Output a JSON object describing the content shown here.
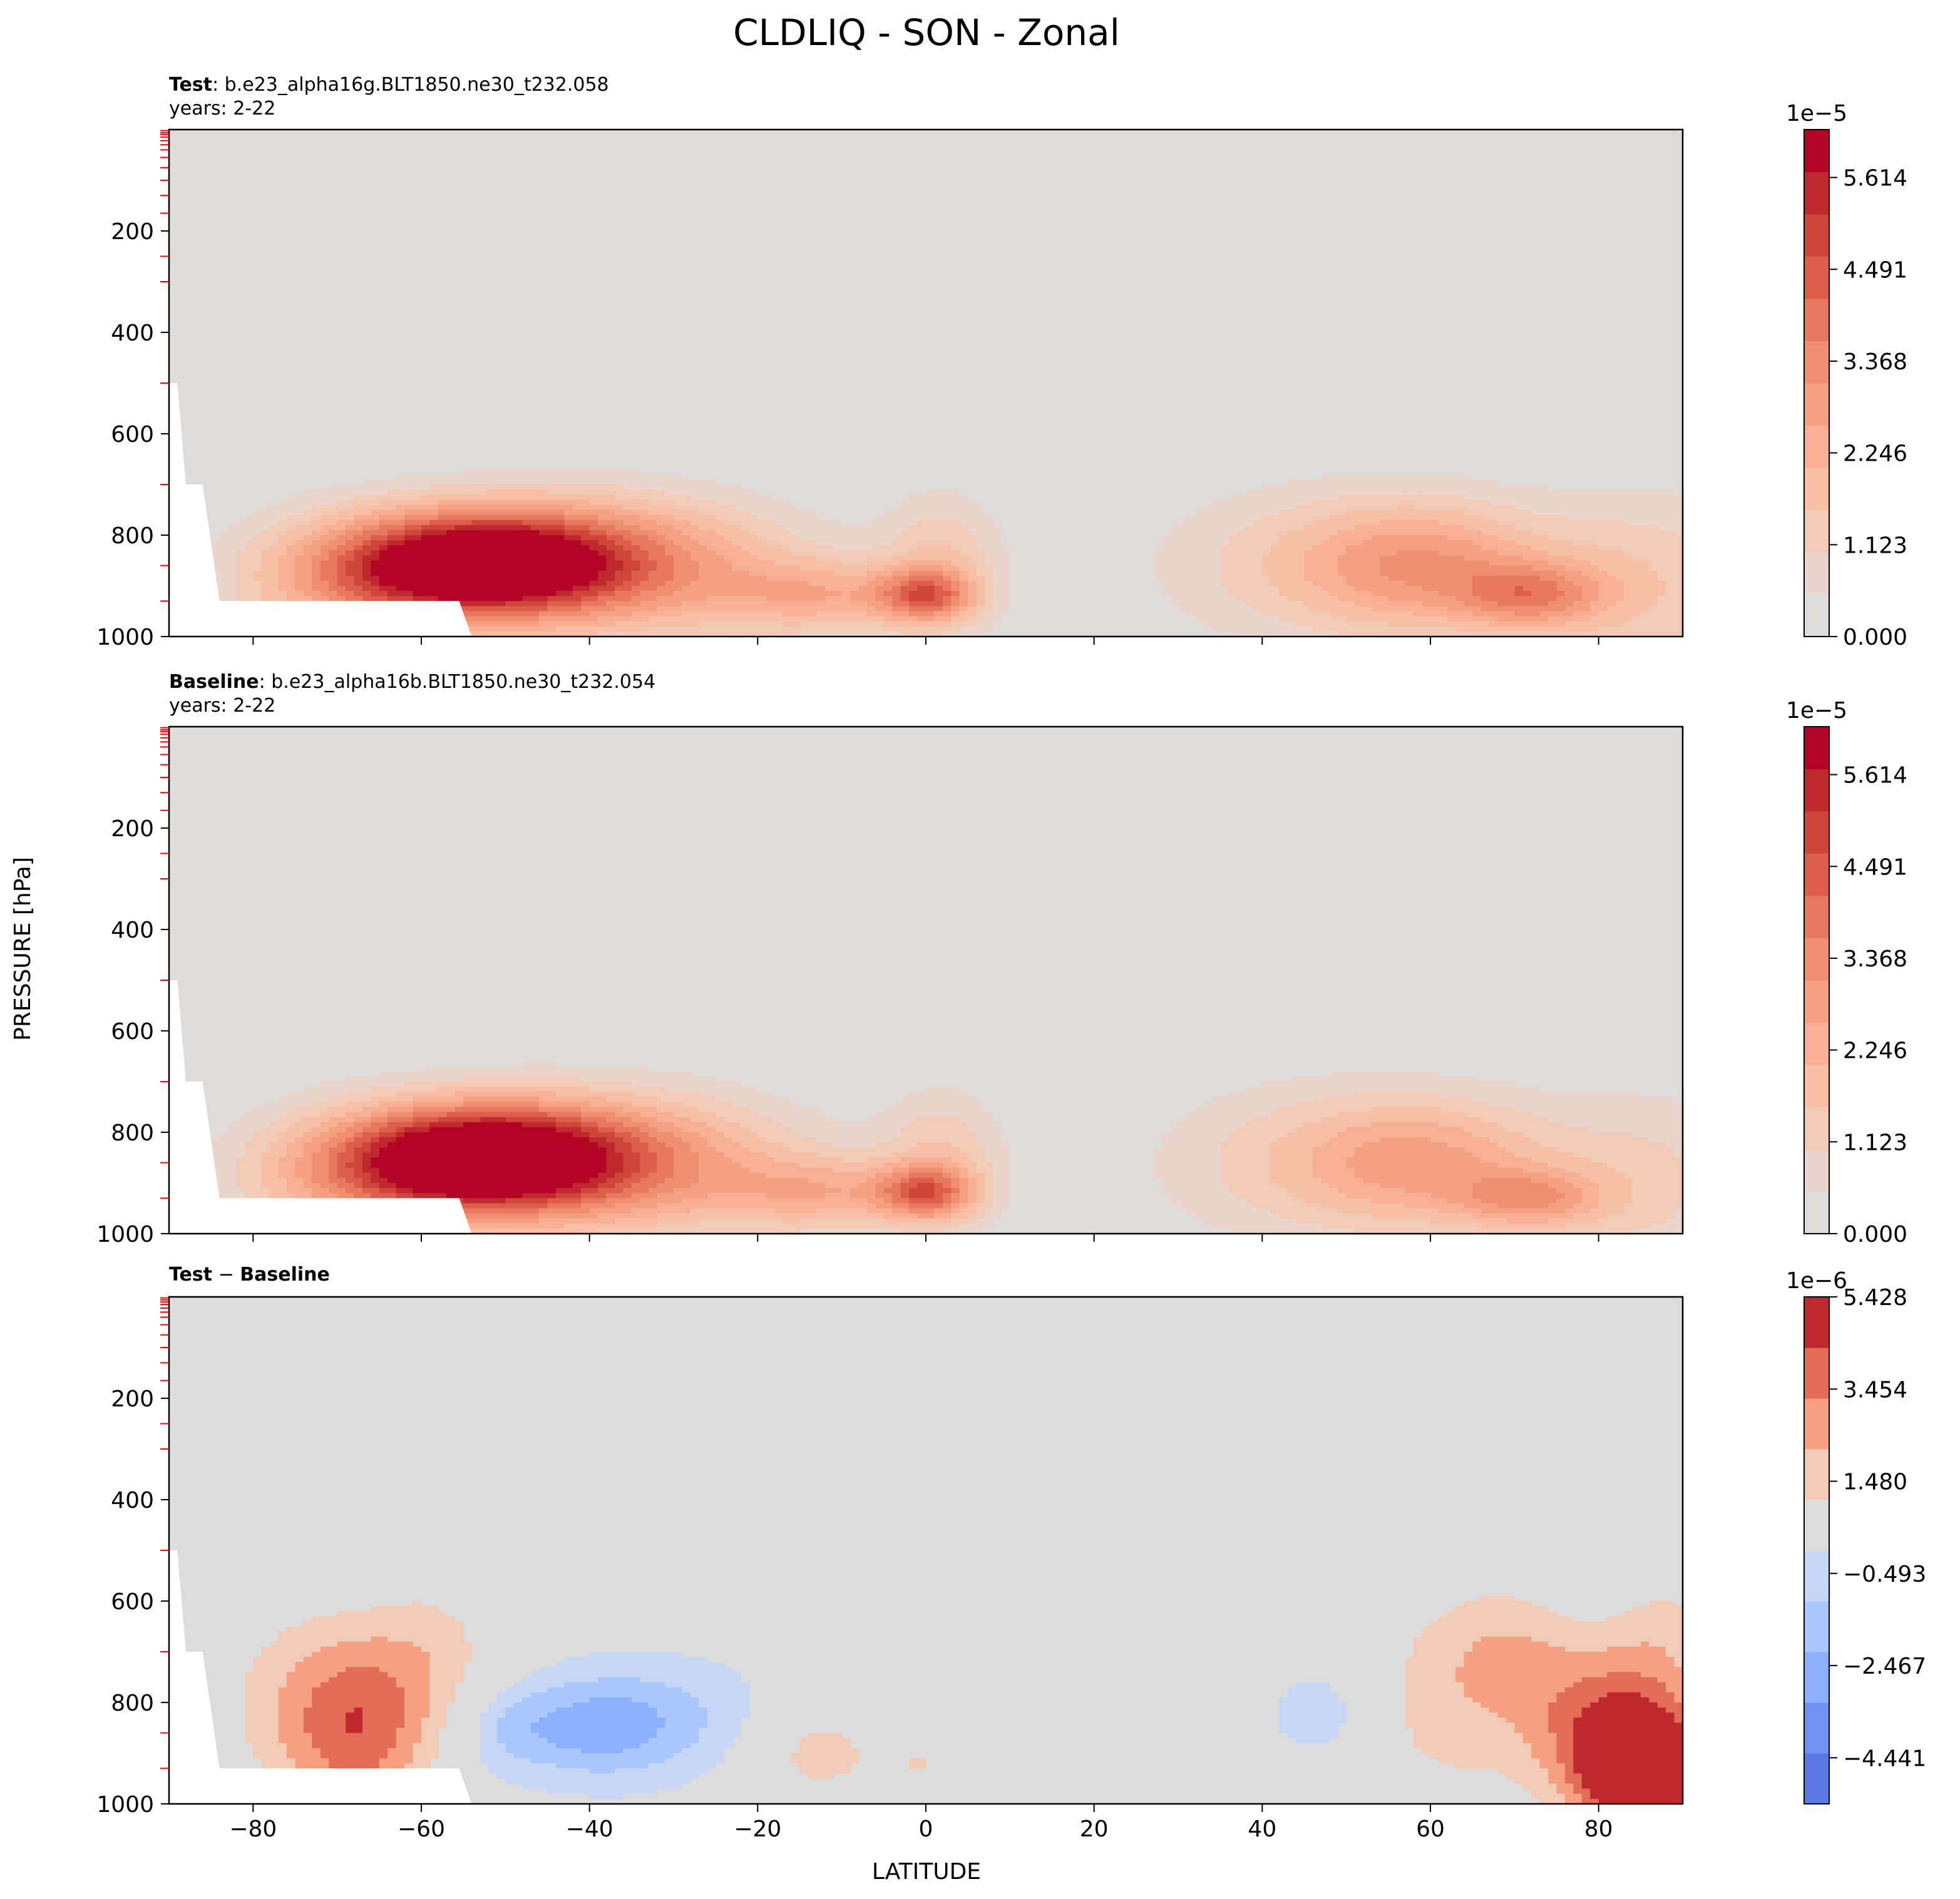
{
  "figure_title": "CLDLIQ - SON - Zonal",
  "y_label": "PRESSURE [hPa]",
  "x_label": "LATITUDE",
  "colors": {
    "seq_scale": [
      "#dddcdb",
      "#e9d5cb",
      "#f2cbb7",
      "#f6bfa6",
      "#f7b093",
      "#f5a081",
      "#f08f6f",
      "#e7795f",
      "#dc5e4b",
      "#cf4539",
      "#c0282f",
      "#b40426"
    ],
    "diff_scale": [
      "#5a78e4",
      "#6f92f3",
      "#8db0fe",
      "#a9c6fd",
      "#c5d7f4",
      "#dcdcdc",
      "#f2cbb7",
      "#f5a081",
      "#e36c55",
      "#c0282f"
    ],
    "white": "#ffffff",
    "tick_red": "#ff0000"
  },
  "chart_data": [
    {
      "id": "test",
      "type": "contourf",
      "label_bold": "Test",
      "label_rest": ": b.e23_alpha16g.BLT1850.ne30_t232.058",
      "subtitle": "years: 2-22",
      "xlim": [
        -90,
        90
      ],
      "ylim": [
        1000,
        0
      ],
      "y_ticks": [
        200,
        400,
        600,
        800,
        1000
      ],
      "x_ticks": [
        -80,
        -60,
        -40,
        -20,
        0,
        20,
        40,
        60,
        80
      ],
      "colorbar": {
        "multiplier": "1e−5",
        "tick_labels": [
          "5.614",
          "4.491",
          "3.368",
          "2.246",
          "1.123",
          "0.000"
        ],
        "tick_values": [
          5.614,
          4.491,
          3.368,
          2.246,
          1.123,
          0.0
        ],
        "range": [
          0,
          6.2
        ]
      },
      "features": [
        {
          "lat": -55,
          "p": 860,
          "amp": 6.0,
          "slat": 11,
          "sp": 70
        },
        {
          "lat": -45,
          "p": 850,
          "amp": 3.2,
          "slat": 13,
          "sp": 85
        },
        {
          "lat": -70,
          "p": 900,
          "amp": 1.8,
          "slat": 10,
          "sp": 100
        },
        {
          "lat": -30,
          "p": 870,
          "amp": 1.8,
          "slat": 14,
          "sp": 100
        },
        {
          "lat": -12,
          "p": 920,
          "amp": 2.0,
          "slat": 8,
          "sp": 50
        },
        {
          "lat": 0,
          "p": 920,
          "amp": 3.3,
          "slat": 4,
          "sp": 35
        },
        {
          "lat": 2,
          "p": 860,
          "amp": 1.6,
          "slat": 5,
          "sp": 100
        },
        {
          "lat": 60,
          "p": 860,
          "amp": 2.7,
          "slat": 10,
          "sp": 90
        },
        {
          "lat": 72,
          "p": 920,
          "amp": 2.6,
          "slat": 6,
          "sp": 45
        },
        {
          "lat": 45,
          "p": 860,
          "amp": 1.4,
          "slat": 13,
          "sp": 110
        },
        {
          "lat": 85,
          "p": 900,
          "amp": 1.6,
          "slat": 10,
          "sp": 130
        }
      ]
    },
    {
      "id": "baseline",
      "type": "contourf",
      "label_bold": "Baseline",
      "label_rest": ": b.e23_alpha16b.BLT1850.ne30_t232.054",
      "subtitle": "years: 2-22",
      "xlim": [
        -90,
        90
      ],
      "ylim": [
        1000,
        0
      ],
      "y_ticks": [
        200,
        400,
        600,
        800,
        1000
      ],
      "x_ticks": [
        -80,
        -60,
        -40,
        -20,
        0,
        20,
        40,
        60,
        80
      ],
      "colorbar": {
        "multiplier": "1e−5",
        "tick_labels": [
          "5.614",
          "4.491",
          "3.368",
          "2.246",
          "1.123",
          "0.000"
        ],
        "tick_values": [
          5.614,
          4.491,
          3.368,
          2.246,
          1.123,
          0.0
        ],
        "range": [
          0,
          6.2
        ]
      },
      "features": [
        {
          "lat": -55,
          "p": 855,
          "amp": 6.2,
          "slat": 11,
          "sp": 72
        },
        {
          "lat": -45,
          "p": 850,
          "amp": 3.3,
          "slat": 13,
          "sp": 85
        },
        {
          "lat": -70,
          "p": 900,
          "amp": 1.6,
          "slat": 10,
          "sp": 100
        },
        {
          "lat": -30,
          "p": 870,
          "amp": 1.8,
          "slat": 14,
          "sp": 100
        },
        {
          "lat": -12,
          "p": 920,
          "amp": 2.0,
          "slat": 8,
          "sp": 50
        },
        {
          "lat": 0,
          "p": 920,
          "amp": 3.3,
          "slat": 4,
          "sp": 35
        },
        {
          "lat": 2,
          "p": 860,
          "amp": 1.6,
          "slat": 5,
          "sp": 100
        },
        {
          "lat": 60,
          "p": 860,
          "amp": 2.4,
          "slat": 10,
          "sp": 90
        },
        {
          "lat": 72,
          "p": 930,
          "amp": 2.3,
          "slat": 6,
          "sp": 40
        },
        {
          "lat": 45,
          "p": 860,
          "amp": 1.4,
          "slat": 13,
          "sp": 110
        },
        {
          "lat": 85,
          "p": 900,
          "amp": 1.3,
          "slat": 10,
          "sp": 130
        }
      ]
    },
    {
      "id": "diff",
      "type": "contourf",
      "label_bold": "Test",
      "label_rest": " − ",
      "label_bold2": "Baseline",
      "subtitle": "",
      "xlim": [
        -90,
        90
      ],
      "ylim": [
        1000,
        0
      ],
      "y_ticks": [
        200,
        400,
        600,
        800,
        1000
      ],
      "x_ticks": [
        -80,
        -60,
        -40,
        -20,
        0,
        20,
        40,
        60,
        80
      ],
      "colorbar": {
        "multiplier": "1e−6",
        "tick_labels": [
          "5.428",
          "3.454",
          "1.480",
          "−0.493",
          "−2.467",
          "−4.441"
        ],
        "tick_values": [
          5.428,
          3.454,
          1.48,
          -0.493,
          -2.467,
          -4.441
        ],
        "range": [
          -5.428,
          5.428
        ]
      },
      "features": [
        {
          "lat": -67,
          "p": 860,
          "amp": 3.2,
          "slat": 6,
          "sp": 130
        },
        {
          "lat": -75,
          "p": 800,
          "amp": 1.8,
          "slat": 8,
          "sp": 150
        },
        {
          "lat": -58,
          "p": 700,
          "amp": 1.6,
          "slat": 6,
          "sp": 120
        },
        {
          "lat": -40,
          "p": 850,
          "amp": -2.4,
          "slat": 7,
          "sp": 70
        },
        {
          "lat": -30,
          "p": 830,
          "amp": -1.4,
          "slat": 9,
          "sp": 80
        },
        {
          "lat": -50,
          "p": 850,
          "amp": -1.2,
          "slat": 4,
          "sp": 60
        },
        {
          "lat": -13,
          "p": 900,
          "amp": 1.9,
          "slat": 6,
          "sp": 80
        },
        {
          "lat": 0,
          "p": 920,
          "amp": 1.3,
          "slat": 4,
          "sp": 60
        },
        {
          "lat": 47,
          "p": 820,
          "amp": -1.3,
          "slat": 4,
          "sp": 60
        },
        {
          "lat": 62,
          "p": 800,
          "amp": 1.8,
          "slat": 8,
          "sp": 170
        },
        {
          "lat": 70,
          "p": 700,
          "amp": 1.5,
          "slat": 6,
          "sp": 100
        },
        {
          "lat": 86,
          "p": 940,
          "amp": 6.0,
          "slat": 5,
          "sp": 80
        },
        {
          "lat": 80,
          "p": 860,
          "amp": 3.6,
          "slat": 6,
          "sp": 120
        },
        {
          "lat": 88,
          "p": 720,
          "amp": 1.8,
          "slat": 5,
          "sp": 150
        }
      ]
    }
  ]
}
